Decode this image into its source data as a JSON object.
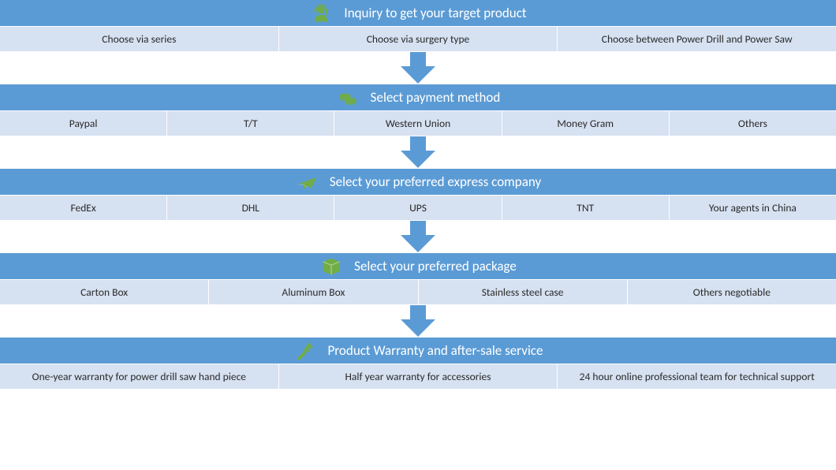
{
  "colors": {
    "header_bg": "#5b9bd5",
    "options_bg": "#d6e1f1",
    "arrow_fill": "#5b9bd5",
    "icon_fill": "#70ad47",
    "text_header": "#ffffff",
    "text_option": "#2a2a2a"
  },
  "arrow": {
    "width": 48,
    "height": 40
  },
  "steps": {
    "s1": {
      "icon": "headset",
      "title": "Inquiry to get your target product",
      "options": [
        "Choose via series",
        "Choose via surgery type",
        "Choose  between Power Drill and Power Saw"
      ]
    },
    "s2": {
      "icon": "coins",
      "title": "Select payment method",
      "options": [
        "Paypal",
        "T/T",
        "Western Union",
        "Money Gram",
        "Others"
      ]
    },
    "s3": {
      "icon": "plane",
      "title": "Select your preferred express company",
      "options": [
        "FedEx",
        "DHL",
        "UPS",
        "TNT",
        "Your agents in China"
      ]
    },
    "s4": {
      "icon": "box",
      "title": "Select your preferred package",
      "options": [
        "Carton Box",
        "Aluminum Box",
        "Stainless steel case",
        "Others negotiable"
      ]
    },
    "s5": {
      "icon": "tools",
      "title": "Product Warranty and after-sale service",
      "options": [
        "One-year warranty for power drill saw hand piece",
        "Half year warranty for accessories",
        "24 hour online professional team for technical support"
      ]
    }
  }
}
